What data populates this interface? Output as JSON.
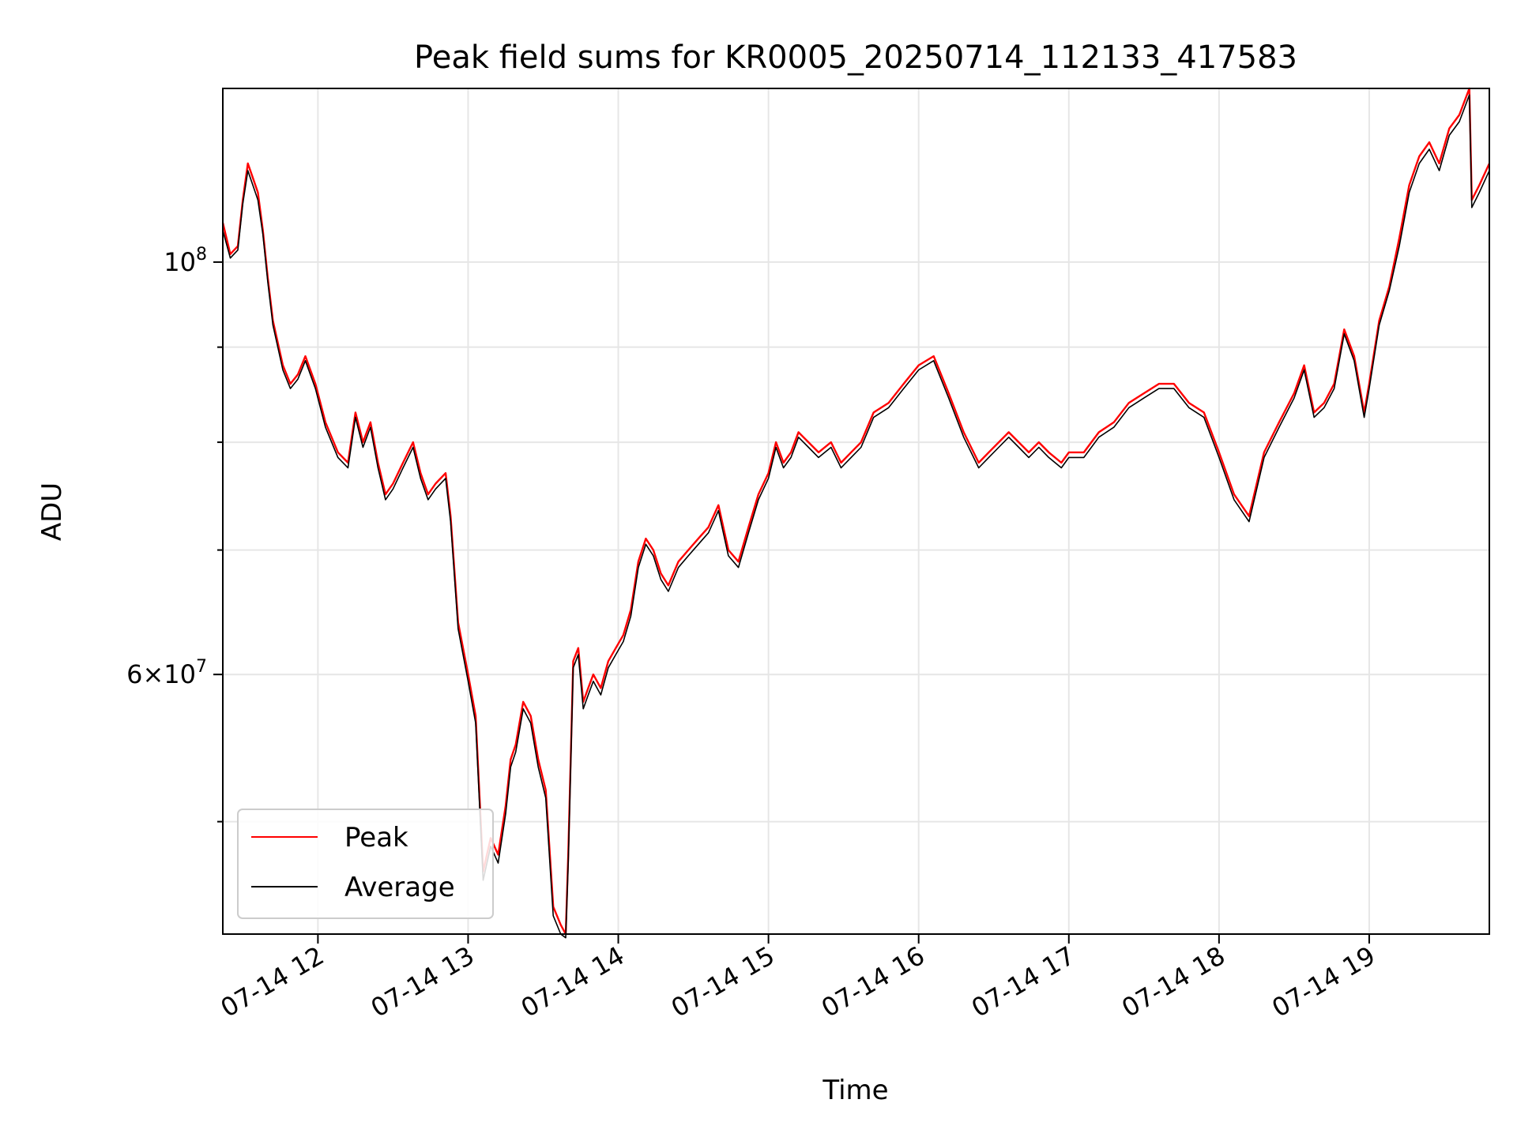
{
  "chart_data": {
    "type": "line",
    "title": "Peak field sums for KR0005_20250714_112133_417583",
    "xlabel": "Time",
    "ylabel": "ADU",
    "yscale": "log",
    "ylim": [
      43500000,
      124000000
    ],
    "xlim": [
      "07-14 11:22",
      "07-14 19:48"
    ],
    "grid": true,
    "legend_position": "lower-left",
    "x_ticks": [
      "07-14 12",
      "07-14 13",
      "07-14 14",
      "07-14 15",
      "07-14 16",
      "07-14 17",
      "07-14 18",
      "07-14 19"
    ],
    "y_tick_labels": [
      {
        "value": 100000000,
        "mantissa": "",
        "base": "10",
        "exp": "8"
      },
      {
        "value": 60000000,
        "mantissa": "6×",
        "base": "10",
        "exp": "7"
      }
    ],
    "y_minor_ticks": [
      50000000,
      70000000,
      80000000,
      90000000
    ],
    "x": [
      "07-14 11:22",
      "07-14 11:25",
      "07-14 11:28",
      "07-14 11:30",
      "07-14 11:32",
      "07-14 11:34",
      "07-14 11:36",
      "07-14 11:38",
      "07-14 11:40",
      "07-14 11:42",
      "07-14 11:46",
      "07-14 11:49",
      "07-14 11:52",
      "07-14 11:55",
      "07-14 11:59",
      "07-14 12:03",
      "07-14 12:08",
      "07-14 12:12",
      "07-14 12:15",
      "07-14 12:18",
      "07-14 12:21",
      "07-14 12:24",
      "07-14 12:27",
      "07-14 12:30",
      "07-14 12:34",
      "07-14 12:38",
      "07-14 12:41",
      "07-14 12:44",
      "07-14 12:47",
      "07-14 12:51",
      "07-14 12:53",
      "07-14 12:56",
      "07-14 13:00",
      "07-14 13:03",
      "07-14 13:06",
      "07-14 13:09",
      "07-14 13:12",
      "07-14 13:15",
      "07-14 13:17",
      "07-14 13:19",
      "07-14 13:22",
      "07-14 13:25",
      "07-14 13:28",
      "07-14 13:31",
      "07-14 13:34",
      "07-14 13:37",
      "07-14 13:39",
      "07-14 13:40",
      "07-14 13:42",
      "07-14 13:44",
      "07-14 13:46",
      "07-14 13:48",
      "07-14 13:50",
      "07-14 13:53",
      "07-14 13:56",
      "07-14 13:59",
      "07-14 14:02",
      "07-14 14:05",
      "07-14 14:08",
      "07-14 14:11",
      "07-14 14:14",
      "07-14 14:17",
      "07-14 14:20",
      "07-14 14:24",
      "07-14 14:28",
      "07-14 14:32",
      "07-14 14:36",
      "07-14 14:40",
      "07-14 14:44",
      "07-14 14:48",
      "07-14 14:52",
      "07-14 14:56",
      "07-14 15:00",
      "07-14 15:03",
      "07-14 15:06",
      "07-14 15:09",
      "07-14 15:12",
      "07-14 15:16",
      "07-14 15:20",
      "07-14 15:25",
      "07-14 15:29",
      "07-14 15:33",
      "07-14 15:37",
      "07-14 15:42",
      "07-14 15:48",
      "07-14 15:54",
      "07-14 16:00",
      "07-14 16:06",
      "07-14 16:12",
      "07-14 16:18",
      "07-14 16:24",
      "07-14 16:28",
      "07-14 16:32",
      "07-14 16:36",
      "07-14 16:40",
      "07-14 16:44",
      "07-14 16:48",
      "07-14 16:52",
      "07-14 16:57",
      "07-14 17:00",
      "07-14 17:06",
      "07-14 17:12",
      "07-14 17:18",
      "07-14 17:24",
      "07-14 17:30",
      "07-14 17:36",
      "07-14 17:42",
      "07-14 17:48",
      "07-14 17:54",
      "07-14 18:00",
      "07-14 18:06",
      "07-14 18:12",
      "07-14 18:18",
      "07-14 18:24",
      "07-14 18:30",
      "07-14 18:34",
      "07-14 18:38",
      "07-14 18:42",
      "07-14 18:46",
      "07-14 18:50",
      "07-14 18:54",
      "07-14 18:58",
      "07-14 19:00",
      "07-14 19:04",
      "07-14 19:08",
      "07-14 19:12",
      "07-14 19:16",
      "07-14 19:20",
      "07-14 19:24",
      "07-14 19:28",
      "07-14 19:32",
      "07-14 19:36",
      "07-14 19:40",
      "07-14 19:41",
      "07-14 19:44",
      "07-14 19:48"
    ],
    "series": [
      {
        "name": "Peak",
        "color": "#ff0000",
        "values": [
          105000000,
          101000000,
          102000000,
          108000000,
          113000000,
          111000000,
          109000000,
          104000000,
          98000000,
          93000000,
          88000000,
          86000000,
          87000000,
          89000000,
          86000000,
          82000000,
          79000000,
          78000000,
          83000000,
          80000000,
          82000000,
          78000000,
          75000000,
          76000000,
          78000000,
          80000000,
          77000000,
          75000000,
          76000000,
          77000000,
          73000000,
          64000000,
          60000000,
          57000000,
          47000000,
          49000000,
          48000000,
          51000000,
          54000000,
          55000000,
          58000000,
          57000000,
          54000000,
          52000000,
          45000000,
          44000000,
          43500000,
          48000000,
          61000000,
          62000000,
          58000000,
          59000000,
          60000000,
          59000000,
          61000000,
          62000000,
          63000000,
          65000000,
          69000000,
          71000000,
          70000000,
          68000000,
          67000000,
          69000000,
          70000000,
          71000000,
          72000000,
          74000000,
          70000000,
          69000000,
          72000000,
          75000000,
          77000000,
          80000000,
          78000000,
          79000000,
          81000000,
          80000000,
          79000000,
          80000000,
          78000000,
          79000000,
          80000000,
          83000000,
          84000000,
          86000000,
          88000000,
          89000000,
          85000000,
          81000000,
          78000000,
          79000000,
          80000000,
          81000000,
          80000000,
          79000000,
          80000000,
          79000000,
          78000000,
          79000000,
          79000000,
          81000000,
          82000000,
          84000000,
          85000000,
          86000000,
          86000000,
          84000000,
          83000000,
          79000000,
          75000000,
          73000000,
          79000000,
          82000000,
          85000000,
          88000000,
          83000000,
          84000000,
          86000000,
          92000000,
          89000000,
          83000000,
          86000000,
          93000000,
          97000000,
          103000000,
          110000000,
          114000000,
          116000000,
          113000000,
          118000000,
          120000000,
          124000000,
          108000000,
          110000000,
          113000000
        ]
      },
      {
        "name": "Average",
        "color": "#000000",
        "values": [
          104000000,
          100500000,
          101500000,
          107500000,
          112000000,
          110000000,
          108000000,
          103500000,
          97500000,
          92500000,
          87500000,
          85500000,
          86500000,
          88500000,
          85500000,
          81500000,
          78500000,
          77500000,
          82500000,
          79500000,
          81500000,
          77500000,
          74500000,
          75500000,
          77500000,
          79500000,
          76500000,
          74500000,
          75500000,
          76500000,
          72500000,
          63500000,
          59500000,
          56500000,
          46500000,
          48500000,
          47500000,
          50500000,
          53500000,
          54500000,
          57500000,
          56500000,
          53500000,
          51500000,
          44500000,
          43500000,
          43300000,
          47500000,
          60500000,
          61500000,
          57500000,
          58500000,
          59500000,
          58500000,
          60500000,
          61500000,
          62500000,
          64500000,
          68500000,
          70500000,
          69500000,
          67500000,
          66500000,
          68500000,
          69500000,
          70500000,
          71500000,
          73500000,
          69500000,
          68500000,
          71500000,
          74500000,
          76500000,
          79500000,
          77500000,
          78500000,
          80500000,
          79500000,
          78500000,
          79500000,
          77500000,
          78500000,
          79500000,
          82500000,
          83500000,
          85500000,
          87500000,
          88500000,
          84500000,
          80500000,
          77500000,
          78500000,
          79500000,
          80500000,
          79500000,
          78500000,
          79500000,
          78500000,
          77500000,
          78500000,
          78500000,
          80500000,
          81500000,
          83500000,
          84500000,
          85500000,
          85500000,
          83500000,
          82500000,
          78500000,
          74500000,
          72500000,
          78500000,
          81500000,
          84500000,
          87500000,
          82500000,
          83500000,
          85500000,
          91500000,
          88500000,
          82500000,
          85500000,
          92500000,
          96500000,
          102000000,
          109000000,
          113000000,
          115000000,
          112000000,
          117000000,
          119000000,
          123000000,
          107000000,
          109000000,
          112000000
        ]
      }
    ]
  }
}
